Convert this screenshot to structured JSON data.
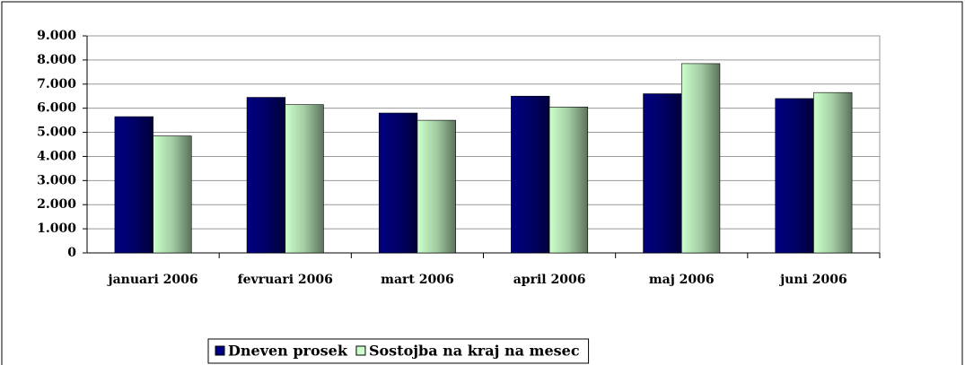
{
  "chart_data": {
    "type": "bar",
    "categories": [
      "januari 2006",
      "fevruari 2006",
      "mart 2006",
      "april 2006",
      "maj 2006",
      "juni 2006"
    ],
    "series": [
      {
        "name": "Dneven prosek",
        "color": "#000080",
        "values": [
          5650,
          6450,
          5800,
          6500,
          6600,
          6400
        ]
      },
      {
        "name": "Sostojba na kraj na mesec",
        "color": "#ccffcc",
        "values": [
          4850,
          6150,
          5500,
          6050,
          7850,
          6650
        ]
      }
    ],
    "ylim": [
      0,
      9000
    ],
    "yticks": [
      {
        "value": 0,
        "label": "0"
      },
      {
        "value": 1000,
        "label": "1.000"
      },
      {
        "value": 2000,
        "label": "2.000"
      },
      {
        "value": 3000,
        "label": "3.000"
      },
      {
        "value": 4000,
        "label": "4.000"
      },
      {
        "value": 5000,
        "label": "5.000"
      },
      {
        "value": 6000,
        "label": "6.000"
      },
      {
        "value": 7000,
        "label": "7.000"
      },
      {
        "value": 8000,
        "label": "8.000"
      },
      {
        "value": 9000,
        "label": "9.000"
      }
    ],
    "grid": true,
    "legend": "bottom"
  }
}
